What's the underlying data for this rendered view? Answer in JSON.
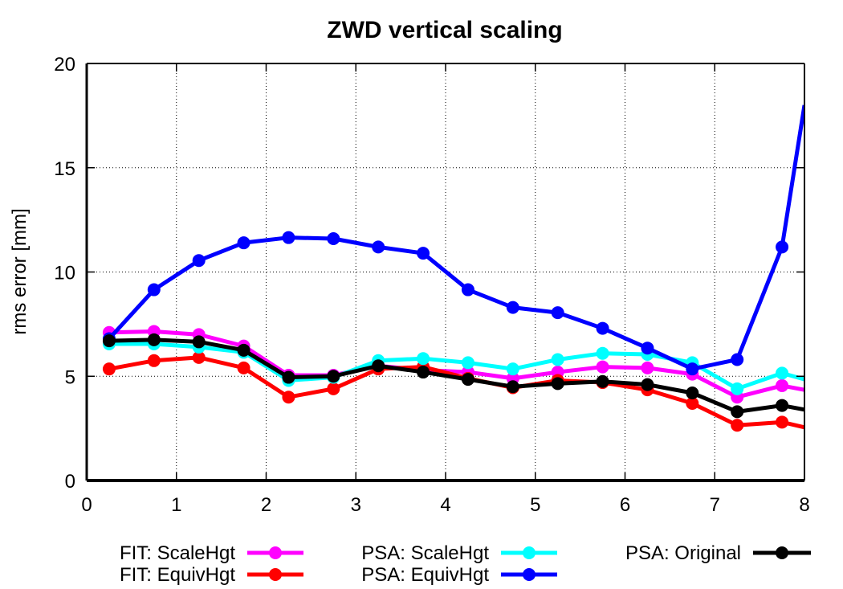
{
  "chart_data": {
    "type": "line",
    "title": "ZWD vertical scaling",
    "xlabel": "",
    "ylabel": "rms error [mm]",
    "xlim": [
      0,
      8
    ],
    "ylim": [
      0,
      20
    ],
    "xticks": [
      0,
      1,
      2,
      3,
      4,
      5,
      6,
      7,
      8
    ],
    "yticks": [
      0,
      5,
      10,
      15,
      20
    ],
    "grid": true,
    "legend_position": "bottom",
    "x": [
      0.25,
      0.75,
      1.25,
      1.75,
      2.25,
      2.75,
      3.25,
      3.75,
      4.25,
      4.75,
      5.25,
      5.75,
      6.25,
      6.75,
      7.25,
      7.75,
      8.0
    ],
    "series": [
      {
        "name": "FIT: ScaleHgt",
        "color": "#ff00ff",
        "values": [
          7.1,
          7.15,
          7.0,
          6.45,
          5.05,
          5.05,
          5.5,
          5.3,
          5.2,
          4.9,
          5.2,
          5.45,
          5.4,
          5.1,
          4.0,
          4.55,
          4.35
        ]
      },
      {
        "name": "FIT: EquivHgt",
        "color": "#ff0000",
        "values": [
          5.35,
          5.75,
          5.9,
          5.4,
          4.0,
          4.4,
          5.35,
          5.45,
          4.9,
          4.45,
          4.8,
          4.7,
          4.35,
          3.7,
          2.65,
          2.8,
          2.55
        ]
      },
      {
        "name": "PSA: ScaleHgt",
        "color": "#00ffff",
        "values": [
          6.55,
          6.55,
          6.4,
          6.15,
          4.8,
          4.95,
          5.75,
          5.85,
          5.65,
          5.35,
          5.8,
          6.1,
          6.05,
          5.65,
          4.4,
          5.15,
          4.85
        ]
      },
      {
        "name": "PSA: EquivHgt",
        "color": "#0000ff",
        "values": [
          6.8,
          9.15,
          10.55,
          11.4,
          11.65,
          11.6,
          11.2,
          10.9,
          9.15,
          8.3,
          8.05,
          7.3,
          6.35,
          5.35,
          5.8,
          11.2,
          18.0
        ]
      },
      {
        "name": "PSA: Original",
        "color": "#000000",
        "values": [
          6.7,
          6.75,
          6.65,
          6.25,
          4.95,
          5.0,
          5.5,
          5.2,
          4.85,
          4.5,
          4.65,
          4.75,
          4.6,
          4.2,
          3.3,
          3.6,
          3.4
        ]
      }
    ]
  }
}
